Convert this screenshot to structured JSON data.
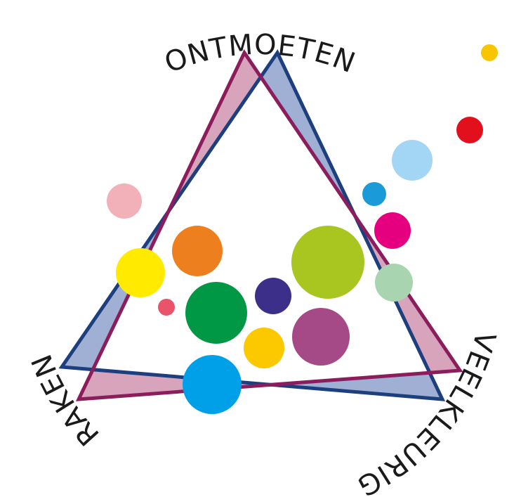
{
  "words": {
    "top": "ONTMOETEN",
    "left": "RAKEN",
    "right": "VEELKLEURIG"
  }
}
